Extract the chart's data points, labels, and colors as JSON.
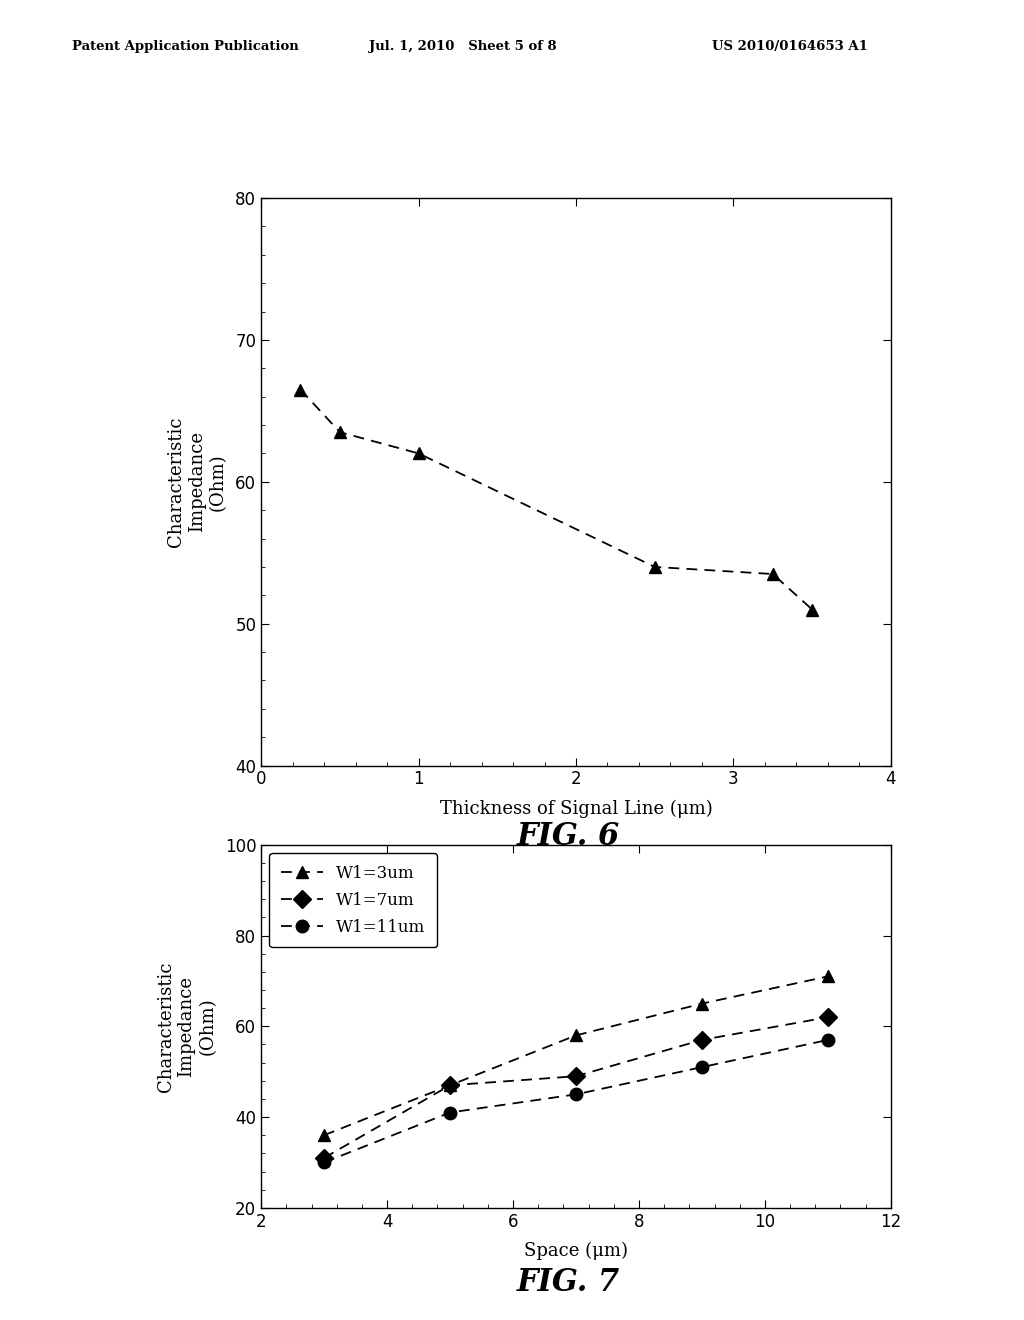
{
  "header_left": "Patent Application Publication",
  "header_mid": "Jul. 1, 2010   Sheet 5 of 8",
  "header_right": "US 2010/0164653 A1",
  "fig6": {
    "x": [
      0.25,
      0.5,
      1.0,
      2.5,
      3.25,
      3.5
    ],
    "y": [
      66.5,
      63.5,
      62.0,
      54.0,
      53.5,
      51.0
    ],
    "xlabel": "Thickness of Signal Line (μm)",
    "ylabel": "Characteristic\nImpedance\n(Ohm)",
    "xlim": [
      0,
      4
    ],
    "ylim": [
      40,
      80
    ],
    "xticks": [
      0,
      1,
      2,
      3,
      4
    ],
    "yticks": [
      40,
      50,
      60,
      70,
      80
    ],
    "title": "FIG. 6",
    "color": "#000000",
    "marker": "^",
    "linestyle": "--"
  },
  "fig7": {
    "series": [
      {
        "label": "W1=3um",
        "x": [
          3,
          5,
          7,
          9,
          11
        ],
        "y": [
          36,
          47,
          58,
          65,
          71
        ],
        "marker": "^",
        "linestyle": "--",
        "color": "#000000"
      },
      {
        "label": "W1=7um",
        "x": [
          3,
          5,
          7,
          9,
          11
        ],
        "y": [
          31,
          47,
          49,
          57,
          62
        ],
        "marker": "D",
        "linestyle": "--",
        "color": "#000000"
      },
      {
        "label": "W1=11um",
        "x": [
          3,
          5,
          7,
          9,
          11
        ],
        "y": [
          30,
          41,
          45,
          51,
          57
        ],
        "marker": "o",
        "linestyle": "--",
        "color": "#000000"
      }
    ],
    "xlabel": "Space (μm)",
    "ylabel": "Characteristic\nImpedance\n(Ohm)",
    "xlim": [
      2,
      12
    ],
    "ylim": [
      20,
      100
    ],
    "xticks": [
      2,
      4,
      6,
      8,
      10,
      12
    ],
    "yticks": [
      20,
      40,
      60,
      80,
      100
    ],
    "title": "FIG. 7"
  },
  "background_color": "#ffffff",
  "text_color": "#000000",
  "fig_width": 10.24,
  "fig_height": 13.2
}
